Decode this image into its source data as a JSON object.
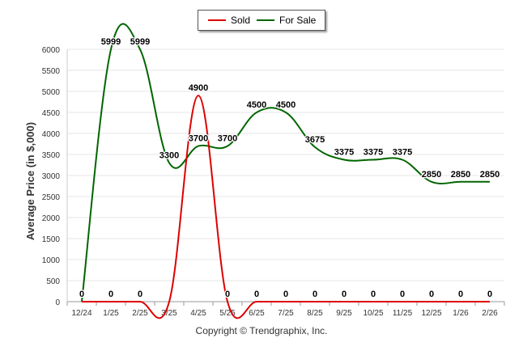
{
  "chart_data": {
    "type": "line",
    "title": "",
    "xlabel": "",
    "ylabel": "Average Price (in $,000)",
    "ylim": [
      0,
      6000
    ],
    "yticks": [
      0,
      500,
      1000,
      1500,
      2000,
      2500,
      3000,
      3500,
      4000,
      4500,
      5000,
      5500,
      6000
    ],
    "categories": [
      "12/24",
      "1/25",
      "2/25",
      "3/25",
      "4/25",
      "5/25",
      "6/25",
      "7/25",
      "8/25",
      "9/25",
      "10/25",
      "11/25",
      "12/25",
      "1/26",
      "2/26"
    ],
    "series": [
      {
        "name": "Sold",
        "color": "#dd0000",
        "values": [
          0,
          0,
          0,
          0,
          4900,
          0,
          0,
          0,
          0,
          0,
          0,
          0,
          0,
          0,
          0
        ],
        "label_shown": [
          true,
          true,
          true,
          false,
          true,
          true,
          true,
          true,
          true,
          true,
          true,
          true,
          true,
          true,
          true
        ]
      },
      {
        "name": "For Sale",
        "color": "#006600",
        "values": [
          0,
          5999,
          5999,
          3300,
          3700,
          3700,
          4500,
          4500,
          3675,
          3375,
          3375,
          3375,
          2850,
          2850,
          2850
        ],
        "label_shown": [
          false,
          true,
          true,
          true,
          true,
          true,
          true,
          true,
          true,
          true,
          true,
          true,
          true,
          true,
          true
        ]
      }
    ],
    "grid": true,
    "legend_position": "top-center"
  },
  "footer": {
    "copyright": "Copyright © Trendgraphix, Inc."
  }
}
